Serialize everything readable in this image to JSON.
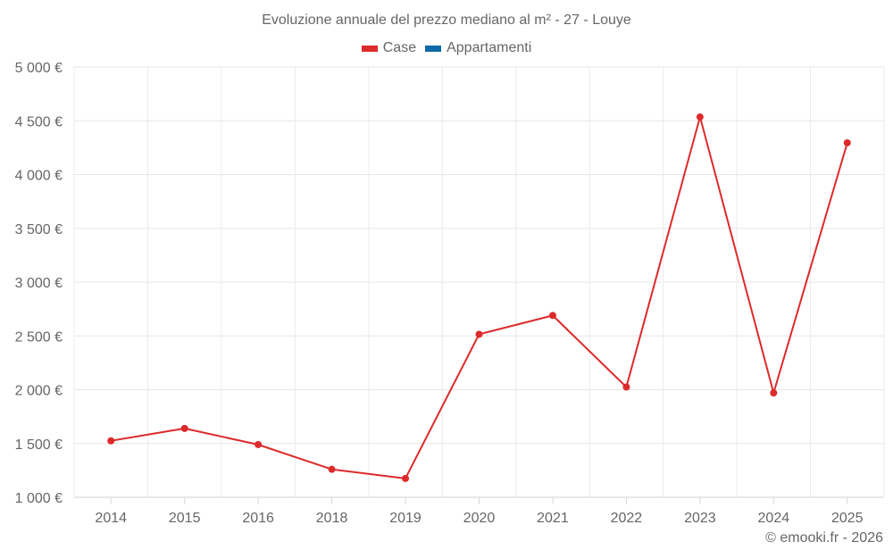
{
  "title": "Evoluzione annuale del prezzo mediano al m² - 27 - Louye",
  "legend": [
    {
      "label": "Case",
      "color": "#dd2a2a"
    },
    {
      "label": "Appartamenti",
      "color": "#0f6aa8"
    }
  ],
  "credit": "© emooki.fr - 2026",
  "chart_data": {
    "type": "line",
    "title": "Evoluzione annuale del prezzo mediano al m² - 27 - Louye",
    "xlabel": "",
    "ylabel": "",
    "categories": [
      "2014",
      "2015",
      "2016",
      "2018",
      "2019",
      "2020",
      "2021",
      "2022",
      "2023",
      "2024",
      "2025"
    ],
    "series": [
      {
        "name": "Case",
        "color": "#dd2a2a",
        "values": [
          1525,
          1640,
          1490,
          1260,
          1175,
          2515,
          2690,
          2025,
          4535,
          1970,
          4295
        ]
      },
      {
        "name": "Appartamenti",
        "color": "#0f6aa8",
        "values": []
      }
    ],
    "ylim": [
      1000,
      5000
    ],
    "yticks": [
      1000,
      1500,
      2000,
      2500,
      3000,
      3500,
      4000,
      4500,
      5000
    ],
    "ytick_labels": [
      "1 000 €",
      "1 500 €",
      "2 000 €",
      "2 500 €",
      "3 000 €",
      "3 500 €",
      "4 000 €",
      "4 500 €",
      "5 000 €"
    ],
    "grid": true,
    "legend_position": "top"
  }
}
